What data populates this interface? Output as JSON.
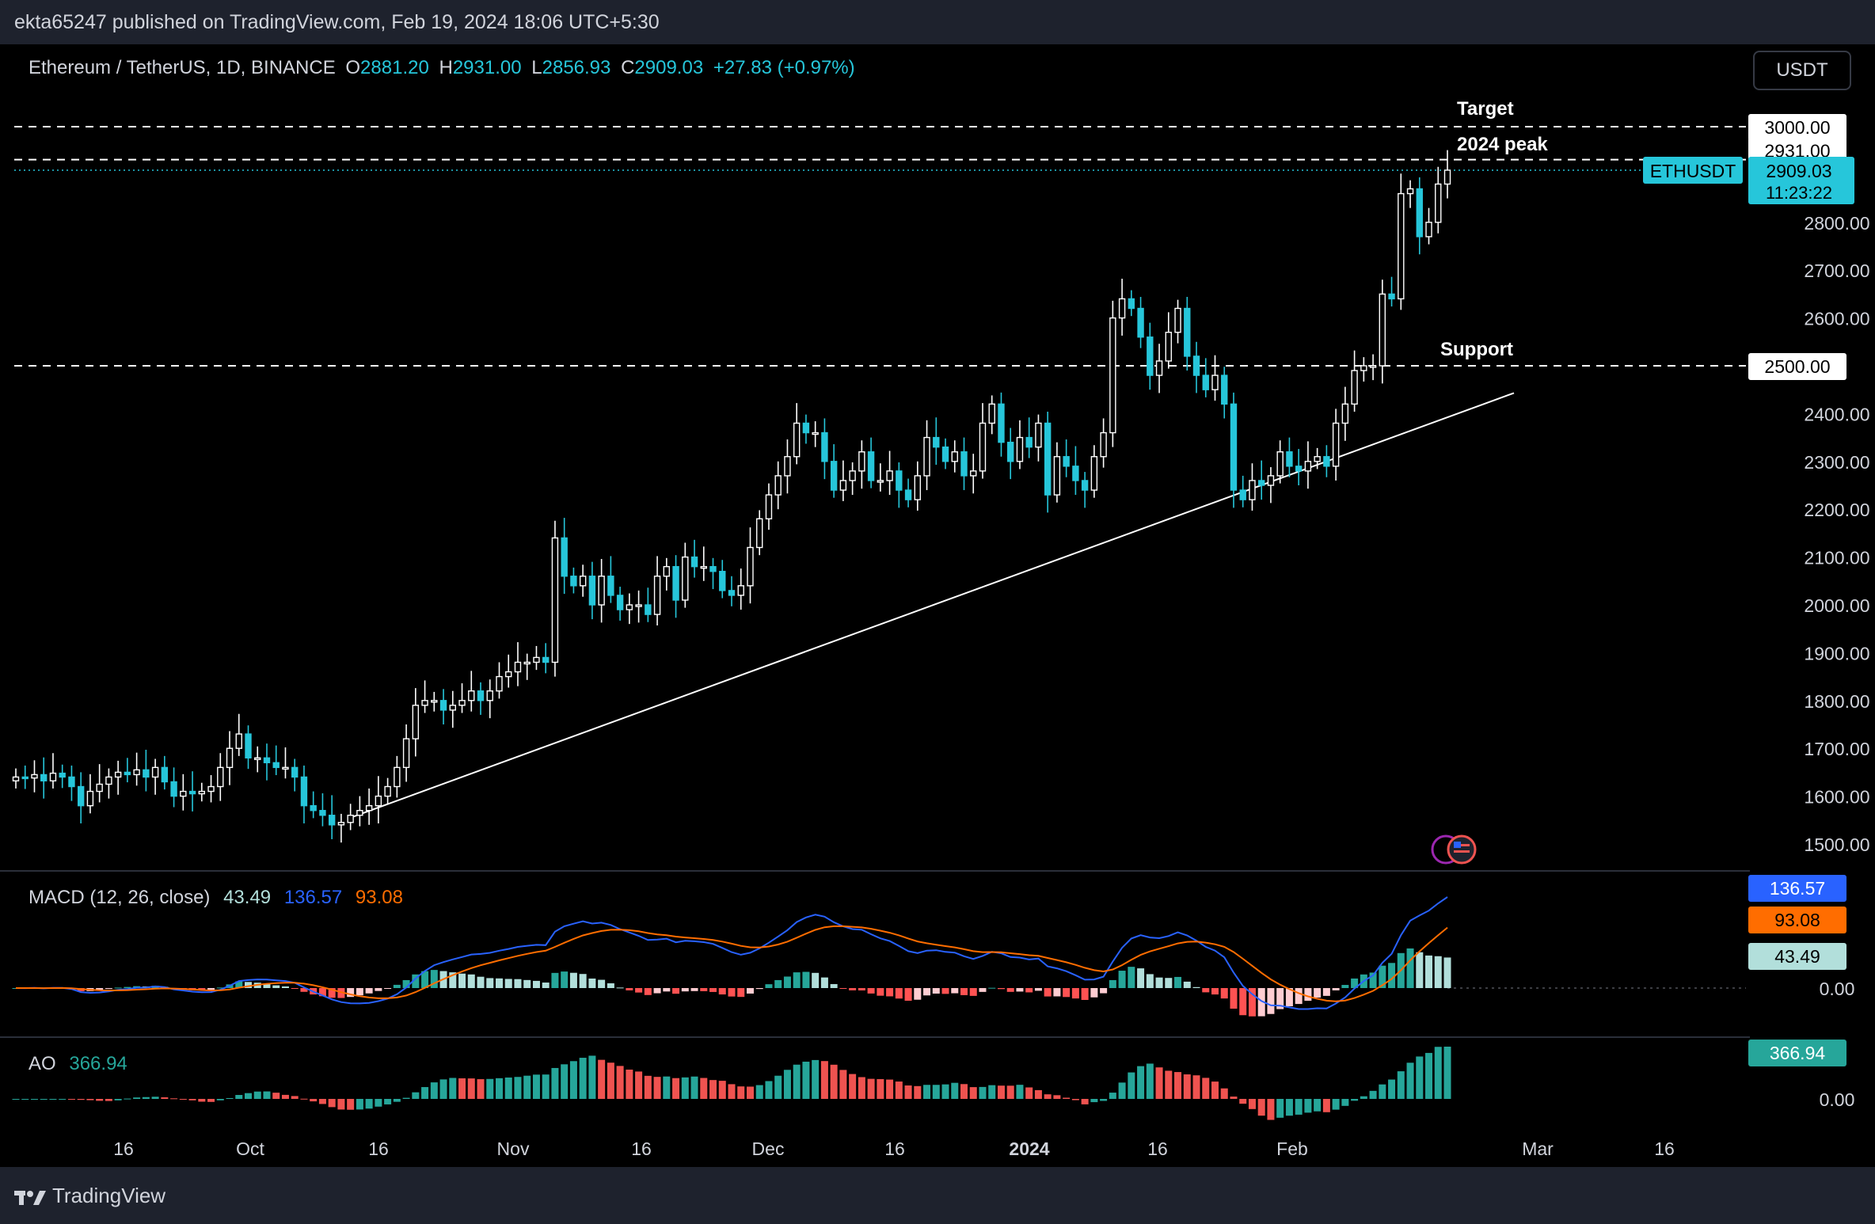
{
  "header": {
    "published": "ekta65247 published on TradingView.com, Feb 19, 2024 18:06 UTC+5:30"
  },
  "legend": {
    "symbol": "Ethereum / TetherUS, 1D, BINANCE",
    "o_label": "O",
    "o_value": "2881.20",
    "h_label": "H",
    "h_value": "2931.00",
    "l_label": "L",
    "l_value": "2856.93",
    "c_label": "C",
    "c_value": "2909.03",
    "change": "+27.83 (+0.97%)"
  },
  "currency_button": "USDT",
  "annotations": {
    "target": "Target",
    "peak": "2024 peak",
    "support": "Support"
  },
  "price_axis": {
    "ticks": [
      "3000.00",
      "2800.00",
      "2700.00",
      "2600.00",
      "2500.00",
      "2400.00",
      "2300.00",
      "2200.00",
      "2100.00",
      "2000.00",
      "1900.00",
      "1800.00",
      "1700.00",
      "1600.00",
      "1500.00"
    ],
    "target_label": "3000.00",
    "peak_label": "2931.00",
    "support_label": "2500.00",
    "symbol_tag": "ETHUSDT",
    "last_price": "2909.03",
    "countdown": "11:23:22"
  },
  "macd": {
    "label": "MACD (12, 26, close)",
    "hist": "43.49",
    "macd": "136.57",
    "signal": "93.08",
    "zero": "0.00",
    "colors": {
      "macd": "#2962ff",
      "signal": "#ff6d00"
    }
  },
  "ao": {
    "label": "AO",
    "value": "366.94",
    "zero": "0.00"
  },
  "time_axis": [
    "16",
    "Oct",
    "16",
    "Nov",
    "16",
    "Dec",
    "16",
    "2024",
    "16",
    "Feb",
    "Mar",
    "16"
  ],
  "brand": "TradingView",
  "colors": {
    "up": "#ffffff",
    "down": "#26c6da",
    "ao_up": "#26a69a",
    "ao_down": "#ef5350"
  },
  "chart_data": {
    "type": "candlestick",
    "title": "Ethereum / TetherUS, 1D, BINANCE",
    "ylim": [
      1450,
      3050
    ],
    "horizontal_levels": [
      {
        "label": "Target",
        "value": 3000
      },
      {
        "label": "2024 peak",
        "value": 2931
      },
      {
        "label": "Support",
        "value": 2500
      }
    ],
    "closes": [
      1640,
      1638,
      1645,
      1632,
      1648,
      1640,
      1620,
      1580,
      1610,
      1625,
      1640,
      1650,
      1645,
      1655,
      1640,
      1660,
      1630,
      1600,
      1610,
      1605,
      1610,
      1620,
      1660,
      1700,
      1730,
      1680,
      1680,
      1670,
      1660,
      1660,
      1640,
      1580,
      1570,
      1560,
      1540,
      1545,
      1560,
      1570,
      1580,
      1600,
      1620,
      1660,
      1720,
      1790,
      1800,
      1800,
      1780,
      1790,
      1800,
      1820,
      1800,
      1820,
      1850,
      1860,
      1880,
      1880,
      1890,
      1880,
      2140,
      2060,
      2040,
      2060,
      2000,
      2060,
      2020,
      1990,
      2000,
      2000,
      1980,
      2060,
      2080,
      2010,
      2100,
      2080,
      2080,
      2070,
      2030,
      2020,
      2040,
      2120,
      2180,
      2230,
      2270,
      2310,
      2380,
      2360,
      2360,
      2300,
      2240,
      2260,
      2280,
      2320,
      2260,
      2260,
      2280,
      2240,
      2220,
      2270,
      2350,
      2330,
      2300,
      2320,
      2270,
      2280,
      2380,
      2420,
      2340,
      2300,
      2350,
      2330,
      2380,
      2230,
      2310,
      2290,
      2260,
      2240,
      2310,
      2360,
      2600,
      2640,
      2620,
      2560,
      2480,
      2510,
      2570,
      2620,
      2520,
      2480,
      2450,
      2480,
      2420,
      2240,
      2220,
      2260,
      2250,
      2270,
      2320,
      2290,
      2280,
      2300,
      2310,
      2290,
      2380,
      2420,
      2490,
      2500,
      2500,
      2650,
      2640,
      2860,
      2870,
      2770,
      2800,
      2880,
      2909
    ],
    "macd": {
      "last": 136.57,
      "signal": 93.08,
      "hist": 43.49
    },
    "ao_last": 366.94
  }
}
